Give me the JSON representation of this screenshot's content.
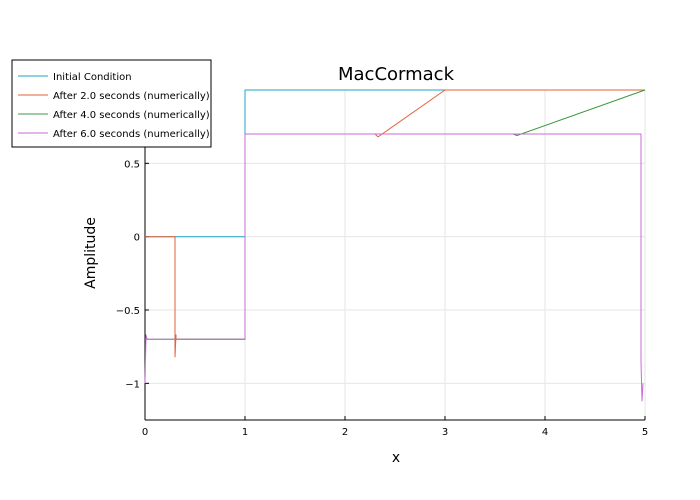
{
  "chart_data": {
    "type": "line",
    "title": "MacCormack",
    "xlabel": "x",
    "ylabel": "Amplitude",
    "xlim": [
      0,
      5
    ],
    "ylim": [
      -1.25,
      1.0
    ],
    "xticks": [
      0,
      1,
      2,
      3,
      4,
      5
    ],
    "xtick_labels": [
      "0",
      "1",
      "2",
      "3",
      "4",
      "5"
    ],
    "yticks": [
      -1,
      -0.5,
      0,
      0.5
    ],
    "ytick_labels": [
      "−1",
      "−0.5",
      "0",
      "0.5"
    ],
    "grid": true,
    "legend_position": "top-left",
    "series": [
      {
        "name": "Initial Condition",
        "color": "#1ea6c8",
        "points": [
          [
            0,
            0
          ],
          [
            1,
            0
          ],
          [
            1,
            1
          ],
          [
            5,
            1
          ]
        ]
      },
      {
        "name": "After 2.0 seconds (numerically)",
        "color": "#e2623a",
        "points": [
          [
            0,
            0
          ],
          [
            0.3,
            0
          ],
          [
            0.3,
            -0.82
          ],
          [
            0.31,
            -0.67
          ],
          [
            0.31,
            -0.7
          ],
          [
            1,
            -0.7
          ],
          [
            1,
            0.7
          ],
          [
            2.3,
            0.7
          ],
          [
            2.33,
            0.68
          ],
          [
            3.0,
            1
          ],
          [
            5,
            1
          ]
        ]
      },
      {
        "name": "After 4.0 seconds (numerically)",
        "color": "#3a9a3f",
        "points": [
          [
            0,
            -0.7
          ],
          [
            1,
            -0.7
          ],
          [
            1,
            0.7
          ],
          [
            3.68,
            0.7
          ],
          [
            3.72,
            0.69
          ],
          [
            5,
            1
          ]
        ]
      },
      {
        "name": "After 6.0 seconds (numerically)",
        "color": "#c86bd6",
        "points": [
          [
            0,
            -1.0
          ],
          [
            0.01,
            -0.67
          ],
          [
            0.02,
            -0.7
          ],
          [
            1,
            -0.7
          ],
          [
            1,
            0.7
          ],
          [
            4.96,
            0.7
          ],
          [
            4.96,
            -0.85
          ],
          [
            4.97,
            -1.12
          ],
          [
            4.98,
            -1.0
          ]
        ]
      }
    ]
  }
}
